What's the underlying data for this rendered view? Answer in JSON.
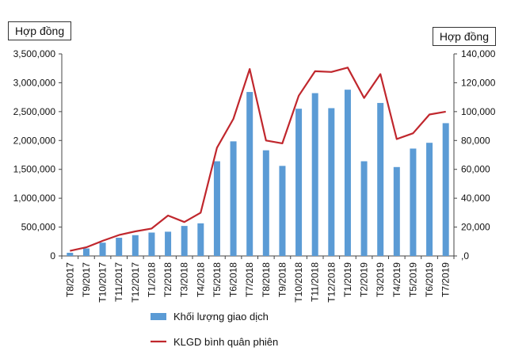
{
  "chart_data": {
    "type": "bar+line",
    "categories": [
      "T8/2017",
      "T9/2017",
      "T10/2017",
      "T11/2017",
      "T12/2017",
      "T1/2018",
      "T2/2018",
      "T3/2018",
      "T4/2018",
      "T5/2018",
      "T6/2018",
      "T7/2018",
      "T8/2018",
      "T9/2018",
      "T10/2018",
      "T11/2018",
      "T12/2018",
      "T1/2019",
      "T2/2019",
      "T3/2019",
      "T4/2019",
      "T5/2019",
      "T6/2019",
      "T7/2019"
    ],
    "series": [
      {
        "name": "Khối lượng giao dịch",
        "type": "bar",
        "axis": "left",
        "color": "#5b9bd5",
        "values": [
          55000,
          130000,
          230000,
          315000,
          360000,
          405000,
          420000,
          520000,
          565000,
          1640000,
          1985000,
          2840000,
          1830000,
          1560000,
          2550000,
          2820000,
          2560000,
          2880000,
          1640000,
          2650000,
          1540000,
          1860000,
          1960000,
          2300000
        ]
      },
      {
        "name": "KLGD bình quân phiên",
        "type": "line",
        "axis": "right",
        "color": "#c0272d",
        "values": [
          3500,
          6000,
          10500,
          14500,
          17000,
          19000,
          28000,
          23500,
          30000,
          75000,
          95000,
          129500,
          80000,
          78000,
          111000,
          128000,
          127500,
          130500,
          109500,
          126000,
          81000,
          85000,
          98000,
          100000
        ]
      }
    ],
    "y_left": {
      "unit_label": "Hợp đồng",
      "min": 0,
      "max": 3500000,
      "ticks": [
        0,
        500000,
        1000000,
        1500000,
        2000000,
        2500000,
        3000000,
        3500000
      ],
      "tick_labels": [
        "0",
        "500,000",
        "1,000,000",
        "1,500,000",
        "2,000,000",
        "2,500,000",
        "3,000,000",
        "3,500,000"
      ]
    },
    "y_right": {
      "unit_label": "Hợp đồng",
      "min": 0,
      "max": 140000,
      "ticks": [
        0,
        20000,
        40000,
        60000,
        80000,
        100000,
        120000,
        140000
      ],
      "tick_labels": [
        ",0",
        "20,000",
        "40,000",
        "60,000",
        "80,000",
        "100,000",
        "120,000",
        "140,000"
      ]
    },
    "legend_position": "bottom",
    "grid": false
  }
}
